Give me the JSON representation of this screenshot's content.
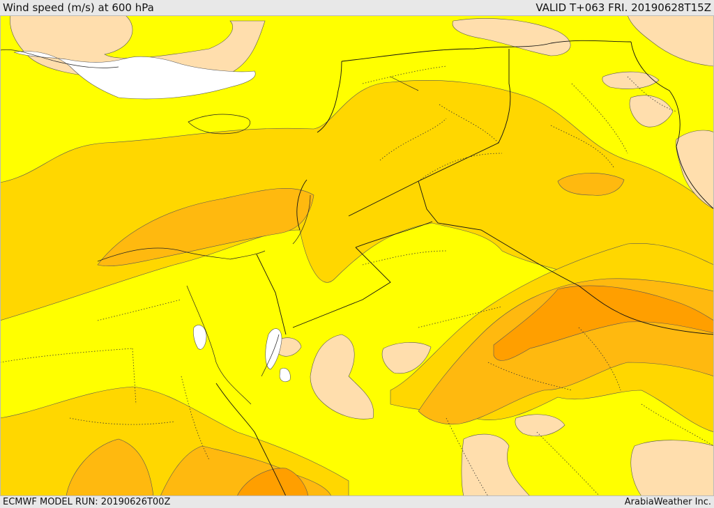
{
  "header": {
    "title": "Wind speed (m/s) at 600 hPa",
    "valid": "VALID T+063 FRI. 20190628T15Z"
  },
  "footer": {
    "model_run": "ECMWF MODEL RUN: 20190626T00Z",
    "credit": "ArabiaWeather Inc."
  },
  "colors": {
    "white_band": "#ffffff",
    "peach_band": "#ffdead",
    "yellow_band": "#ffff00",
    "gold_band": "#ffd700",
    "amber_band": "#ffb90f",
    "orange_band": "#ff9f00",
    "contour_line": "#555555",
    "border_line": "#111111"
  }
}
